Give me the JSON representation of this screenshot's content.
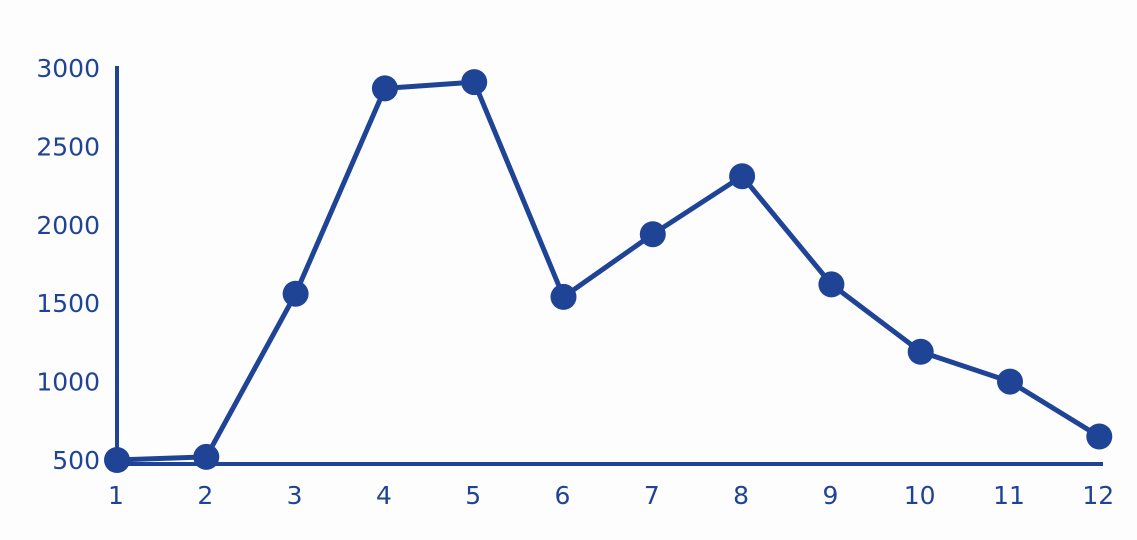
{
  "colors": {
    "series": "#1f4496",
    "axis": "#1f4496",
    "background": "#fdfdfd"
  },
  "chart_data": {
    "type": "line",
    "title": "",
    "xlabel": "",
    "ylabel": "",
    "x": [
      "1",
      "2",
      "3",
      "4",
      "5",
      "6",
      "7",
      "8",
      "9",
      "10",
      "11",
      "12"
    ],
    "series": [
      {
        "values": [
          500,
          520,
          1560,
          2870,
          2910,
          1540,
          1940,
          2310,
          1620,
          1190,
          1000,
          650
        ],
        "markers": true
      }
    ],
    "yticks": [
      500,
      1000,
      1500,
      2000,
      2500,
      3000
    ],
    "ylim": [
      500,
      3000
    ],
    "grid": false,
    "legend": "none"
  }
}
